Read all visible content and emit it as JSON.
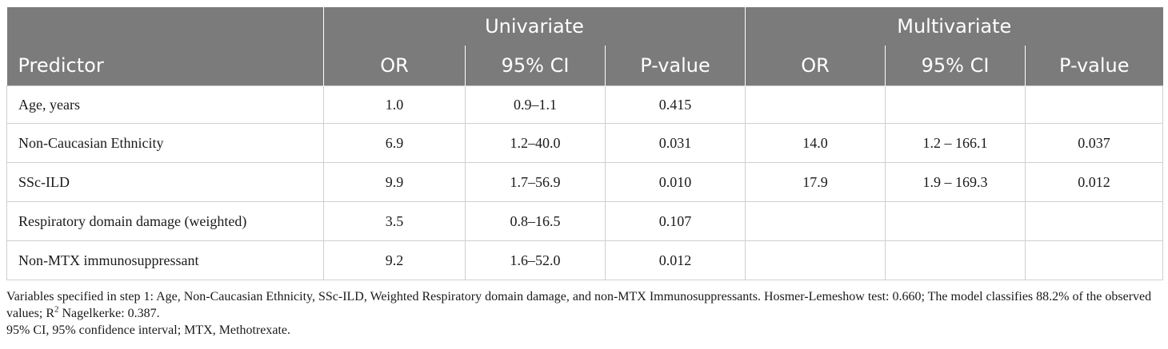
{
  "table": {
    "group_headers": {
      "univariate": "Univariate",
      "multivariate": "Multivariate"
    },
    "column_headers": {
      "predictor": "Predictor",
      "uni_or": "OR",
      "uni_ci": "95% CI",
      "uni_p": "P-value",
      "multi_or": "OR",
      "multi_ci": "95% CI",
      "multi_p": "P-value"
    },
    "rows": [
      {
        "predictor": "Age, years",
        "uni_or": "1.0",
        "uni_ci": "0.9–1.1",
        "uni_p": "0.415",
        "multi_or": "",
        "multi_ci": "",
        "multi_p": ""
      },
      {
        "predictor": "Non-Caucasian Ethnicity",
        "uni_or": "6.9",
        "uni_ci": "1.2–40.0",
        "uni_p": "0.031",
        "multi_or": "14.0",
        "multi_ci": "1.2 – 166.1",
        "multi_p": "0.037"
      },
      {
        "predictor": "SSc-ILD",
        "uni_or": "9.9",
        "uni_ci": "1.7–56.9",
        "uni_p": "0.010",
        "multi_or": "17.9",
        "multi_ci": "1.9 – 169.3",
        "multi_p": "0.012"
      },
      {
        "predictor": "Respiratory domain damage (weighted)",
        "uni_or": "3.5",
        "uni_ci": "0.8–16.5",
        "uni_p": "0.107",
        "multi_or": "",
        "multi_ci": "",
        "multi_p": ""
      },
      {
        "predictor": "Non-MTX immunosuppressant",
        "uni_or": "9.2",
        "uni_ci": "1.6–52.0",
        "uni_p": "0.012",
        "multi_or": "",
        "multi_ci": "",
        "multi_p": ""
      }
    ]
  },
  "notes": {
    "line1_before_sup": "Variables specified in step 1: Age, Non-Caucasian Ethnicity, SSc-ILD, Weighted Respiratory domain damage, and non-MTX Immunosuppressants. Hosmer-Lemeshow test: 0.660; The model classifies 88.2% of the observed values; R",
    "line1_sup": "2",
    "line1_after_sup": " Nagelkerke: 0.387.",
    "line2": "95% CI, 95% confidence interval; MTX, Methotrexate."
  }
}
